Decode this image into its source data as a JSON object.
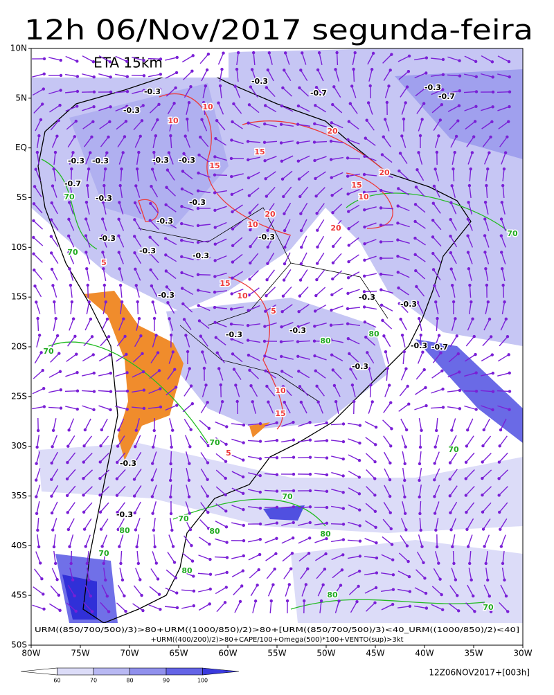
{
  "header": {
    "title": "12h 06/Nov/2017 segunda-feira",
    "model": "ETA 15km"
  },
  "map": {
    "lat_labels": [
      "10N",
      "5N",
      "EQ",
      "5S",
      "10S",
      "15S",
      "20S",
      "25S",
      "30S",
      "35S",
      "40S",
      "45S",
      "50S"
    ],
    "lon_labels": [
      "80W",
      "75W",
      "70W",
      "65W",
      "60W",
      "55W",
      "50W",
      "45W",
      "40W",
      "35W",
      "30W"
    ],
    "contour_labels": [
      "-0.3",
      "-0.3",
      "-0.3",
      "-0.3",
      "-0.3",
      "-0.3",
      "-0.7",
      "-0.3",
      "-0.3",
      "-0.3",
      "-0.3",
      "-0.3",
      "-0.3",
      "-0.3",
      "-0.3",
      "-0.3",
      "-0.3",
      "-0.3",
      "-0.3",
      "-0.3",
      "-0.3",
      "-0.7",
      "-0.3",
      "-0.7",
      "-0.3",
      "-0.3",
      "-0.3",
      "-0.7",
      "10",
      "10",
      "15",
      "20",
      "15",
      "20",
      "10",
      "15",
      "10",
      "10",
      "15",
      "5",
      "5",
      "20",
      "10",
      "20",
      "15",
      "5",
      "70",
      "70",
      "70",
      "70",
      "70",
      "80",
      "80",
      "70",
      "80",
      "80",
      "70",
      "70",
      "70",
      "80",
      "80",
      "80",
      "70"
    ],
    "formula": [
      "URM((850/700/500)/3)>80+URM((1000/850)/2)>80+[URM((850/700/500)/3)<40_URM((1000/850)/2)<40]",
      "+URM((400/200)/2)>80+CAPE/100+Omega(500)*100+VENTO(sup)>3kt"
    ]
  },
  "colorbar": {
    "labels": [
      "60",
      "70",
      "80",
      "90",
      "100"
    ]
  },
  "footer": {
    "timestamp": "12Z06NOV2017+[003h]"
  }
}
